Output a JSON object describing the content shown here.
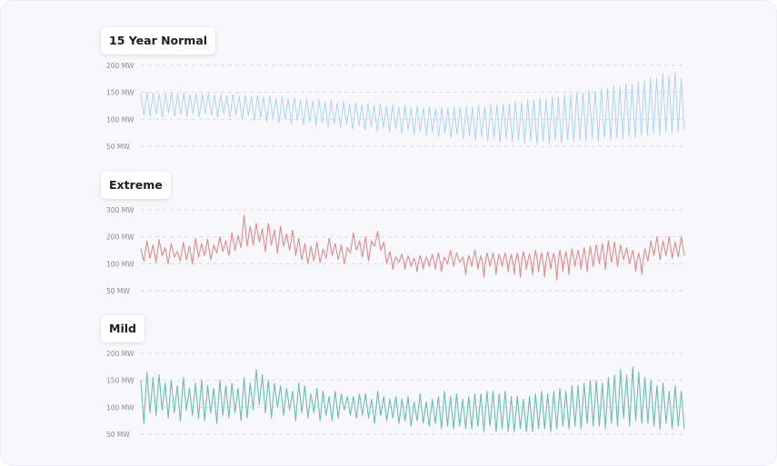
{
  "chart_data": [
    {
      "type": "line",
      "title": "15 Year Normal",
      "color": "#a9d1f5",
      "yticks": [
        "200 MW",
        "150 MW",
        "100 MW",
        "50 MW"
      ],
      "ylim": [
        50,
        200
      ],
      "grid": true,
      "series": [
        {
          "points_per_cycle": 2,
          "values": [
            148,
            108,
            150,
            106,
            149,
            110,
            147,
            104,
            148,
            112,
            150,
            106,
            147,
            109,
            149,
            105,
            146,
            111,
            148,
            104,
            147,
            110,
            149,
            107,
            145,
            103,
            146,
            110,
            144,
            104,
            146,
            108,
            143,
            100,
            145,
            107,
            142,
            98,
            144,
            104,
            141,
            96,
            143,
            102,
            139,
            94,
            142,
            100,
            138,
            92,
            140,
            98,
            136,
            90,
            138,
            96,
            134,
            88,
            137,
            94,
            132,
            86,
            135,
            92,
            130,
            84,
            133,
            90,
            128,
            82,
            131,
            88,
            127,
            80,
            130,
            86,
            126,
            78,
            128,
            84,
            124,
            76,
            127,
            82,
            123,
            74,
            126,
            80,
            122,
            72,
            124,
            78,
            121,
            70,
            123,
            76,
            120,
            68,
            122,
            74,
            121,
            66,
            123,
            72,
            122,
            64,
            124,
            70,
            123,
            62,
            126,
            68,
            125,
            60,
            128,
            66,
            127,
            58,
            130,
            64,
            129,
            58,
            133,
            62,
            132,
            56,
            136,
            60,
            135,
            54,
            139,
            60,
            138,
            56,
            142,
            62,
            141,
            56,
            146,
            62,
            145,
            58,
            150,
            62,
            149,
            60,
            154,
            64,
            153,
            60,
            158,
            64,
            157,
            62,
            162,
            66,
            161,
            64,
            166,
            68,
            165,
            66,
            170,
            70,
            172,
            70,
            178,
            74,
            176,
            70,
            185,
            76,
            180,
            74,
            188,
            78,
            176,
            80
          ]
        }
      ]
    },
    {
      "type": "line",
      "title": "Extreme",
      "color": "#e08c8c",
      "yticks": [
        "300 MW",
        "200 MW",
        "100 MW",
        "50 MW"
      ],
      "ylim": [
        50,
        300
      ],
      "grid": true,
      "series": [
        {
          "points_per_cycle": 2,
          "values": [
            155,
            110,
            185,
            120,
            170,
            105,
            190,
            130,
            160,
            100,
            175,
            125,
            145,
            110,
            180,
            115,
            165,
            100,
            195,
            125,
            175,
            130,
            190,
            115,
            170,
            140,
            200,
            145,
            185,
            130,
            215,
            150,
            205,
            160,
            280,
            165,
            240,
            170,
            250,
            180,
            230,
            145,
            250,
            170,
            225,
            140,
            240,
            165,
            210,
            150,
            225,
            130,
            195,
            115,
            175,
            100,
            165,
            110,
            180,
            105,
            155,
            120,
            195,
            130,
            175,
            115,
            170,
            100,
            160,
            140,
            215,
            150,
            185,
            125,
            200,
            110,
            185,
            165,
            220,
            150,
            180,
            100,
            145,
            90,
            125,
            105,
            135,
            90,
            130,
            95,
            120,
            85,
            130,
            90,
            125,
            95,
            135,
            90,
            140,
            85,
            125,
            100,
            150,
            95,
            140,
            105,
            125,
            80,
            130,
            95,
            150,
            90,
            130,
            75,
            140,
            95,
            140,
            80,
            135,
            95,
            140,
            85,
            135,
            80,
            140,
            75,
            145,
            90,
            135,
            80,
            150,
            85,
            140,
            75,
            145,
            90,
            140,
            70,
            150,
            85,
            145,
            80,
            155,
            95,
            150,
            90,
            160,
            85,
            165,
            95,
            170,
            100,
            175,
            90,
            185,
            105,
            180,
            95,
            170,
            115,
            160,
            100,
            150,
            85,
            140,
            80,
            155,
            110,
            185,
            130,
            200,
            115,
            185,
            130,
            200,
            120,
            180,
            125,
            200,
            130
          ]
        }
      ]
    },
    {
      "type": "line",
      "title": "Mild",
      "color": "#6cbfae",
      "yticks": [
        "200 MW",
        "150 MW",
        "100 MW",
        "50 MW"
      ],
      "ylim": [
        50,
        200
      ],
      "grid": true,
      "series": [
        {
          "points_per_cycle": 2,
          "values": [
            150,
            70,
            165,
            90,
            155,
            85,
            160,
            95,
            145,
            80,
            150,
            90,
            140,
            75,
            155,
            95,
            135,
            85,
            145,
            80,
            150,
            75,
            140,
            90,
            135,
            70,
            150,
            85,
            140,
            80,
            145,
            90,
            135,
            75,
            155,
            80,
            145,
            95,
            170,
            105,
            160,
            90,
            150,
            80,
            145,
            100,
            140,
            85,
            135,
            95,
            130,
            75,
            145,
            90,
            140,
            80,
            125,
            90,
            135,
            75,
            130,
            85,
            120,
            75,
            130,
            80,
            125,
            95,
            120,
            85,
            120,
            80,
            125,
            85,
            125,
            80,
            115,
            70,
            130,
            85,
            120,
            75,
            115,
            80,
            120,
            70,
            115,
            75,
            120,
            65,
            110,
            75,
            125,
            70,
            110,
            65,
            115,
            70,
            120,
            60,
            130,
            65,
            120,
            60,
            125,
            65,
            115,
            60,
            120,
            60,
            125,
            65,
            125,
            55,
            130,
            65,
            130,
            55,
            125,
            60,
            130,
            55,
            120,
            55,
            120,
            60,
            115,
            55,
            120,
            55,
            125,
            60,
            130,
            60,
            125,
            55,
            130,
            60,
            135,
            65,
            130,
            60,
            140,
            65,
            140,
            60,
            145,
            70,
            150,
            65,
            150,
            65,
            145,
            60,
            155,
            70,
            160,
            65,
            170,
            80,
            160,
            65,
            175,
            75,
            165,
            70,
            155,
            70,
            150,
            65,
            140,
            60,
            145,
            70,
            130,
            60,
            140,
            65,
            130,
            60
          ]
        }
      ]
    }
  ]
}
